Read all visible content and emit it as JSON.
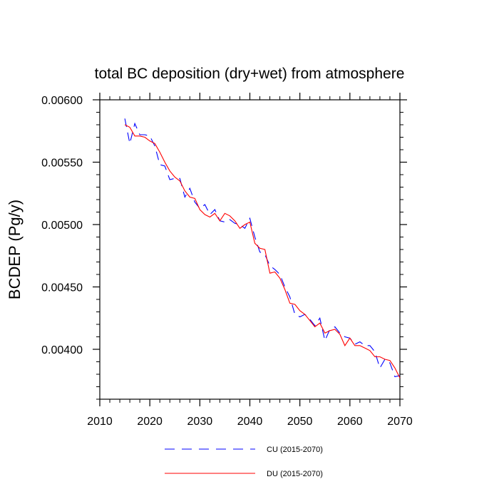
{
  "chart_data": {
    "type": "line",
    "title": "total BC deposition (dry+wet) from atmosphere",
    "xlabel": "",
    "ylabel": "BCDEP  (Pg/y)",
    "xlim": [
      2010,
      2070
    ],
    "ylim": [
      0.0036,
      0.006
    ],
    "xticks": [
      2010,
      2020,
      2030,
      2040,
      2050,
      2060,
      2070
    ],
    "xtick_labels": [
      "2010",
      "2020",
      "2030",
      "2040",
      "2050",
      "2060",
      "2070"
    ],
    "yticks": [
      0.004,
      0.0045,
      0.005,
      0.0055,
      0.006
    ],
    "ytick_labels": [
      "0.00400",
      "0.00450",
      "0.00500",
      "0.00550",
      "0.00600"
    ],
    "grid": false,
    "legend_position": "bottom-center",
    "series": [
      {
        "name": "CU (2015-2070)",
        "color": "#0000ff",
        "style": "dashed",
        "x": [
          2015,
          2016,
          2017,
          2018,
          2019,
          2020,
          2021,
          2022,
          2023,
          2024,
          2025,
          2026,
          2027,
          2028,
          2029,
          2030,
          2031,
          2032,
          2033,
          2034,
          2035,
          2036,
          2037,
          2038,
          2039,
          2040,
          2041,
          2042,
          2043,
          2044,
          2045,
          2046,
          2047,
          2048,
          2049,
          2050,
          2051,
          2052,
          2053,
          2054,
          2055,
          2056,
          2057,
          2058,
          2059,
          2060,
          2061,
          2062,
          2063,
          2064,
          2065,
          2066,
          2067,
          2068,
          2069,
          2070
        ],
        "values": [
          0.00585,
          0.00565,
          0.00581,
          0.00572,
          0.00572,
          0.00571,
          0.00563,
          0.00548,
          0.00547,
          0.00536,
          0.00537,
          0.00537,
          0.00522,
          0.00529,
          0.00518,
          0.00513,
          0.00516,
          0.00508,
          0.00512,
          0.00503,
          0.00502,
          0.00504,
          0.00501,
          0.005,
          0.00497,
          0.00505,
          0.0049,
          0.00478,
          0.00476,
          0.00467,
          0.00464,
          0.0046,
          0.0045,
          0.00442,
          0.00428,
          0.00426,
          0.00428,
          0.00424,
          0.00419,
          0.00425,
          0.00407,
          0.00416,
          0.00418,
          0.00413,
          0.0041,
          0.00409,
          0.00404,
          0.00406,
          0.00403,
          0.00403,
          0.00398,
          0.00385,
          0.00392,
          0.00389,
          0.00378,
          0.00379
        ]
      },
      {
        "name": "DU (2015-2070)",
        "color": "#ff0000",
        "style": "solid",
        "x": [
          2015,
          2016,
          2017,
          2018,
          2019,
          2020,
          2021,
          2022,
          2023,
          2024,
          2025,
          2026,
          2027,
          2028,
          2029,
          2030,
          2031,
          2032,
          2033,
          2034,
          2035,
          2036,
          2037,
          2038,
          2039,
          2040,
          2041,
          2042,
          2043,
          2044,
          2045,
          2046,
          2047,
          2048,
          2049,
          2050,
          2051,
          2052,
          2053,
          2054,
          2055,
          2056,
          2057,
          2058,
          2059,
          2060,
          2061,
          2062,
          2063,
          2064,
          2065,
          2066,
          2067,
          2068,
          2069,
          2070
        ],
        "values": [
          0.0058,
          0.00578,
          0.00571,
          0.00571,
          0.0057,
          0.00567,
          0.00565,
          0.00558,
          0.0055,
          0.00543,
          0.00538,
          0.00535,
          0.00527,
          0.00522,
          0.00521,
          0.00512,
          0.00508,
          0.00506,
          0.00509,
          0.00503,
          0.00509,
          0.00507,
          0.00503,
          0.00497,
          0.005,
          0.00502,
          0.00485,
          0.00481,
          0.0048,
          0.00461,
          0.00462,
          0.00457,
          0.00448,
          0.00437,
          0.00436,
          0.00431,
          0.00428,
          0.00423,
          0.00418,
          0.00421,
          0.00413,
          0.00415,
          0.00416,
          0.00412,
          0.00403,
          0.00409,
          0.00403,
          0.00403,
          0.00401,
          0.00399,
          0.00394,
          0.00394,
          0.00392,
          0.00391,
          0.00385,
          0.00377
        ]
      }
    ]
  }
}
